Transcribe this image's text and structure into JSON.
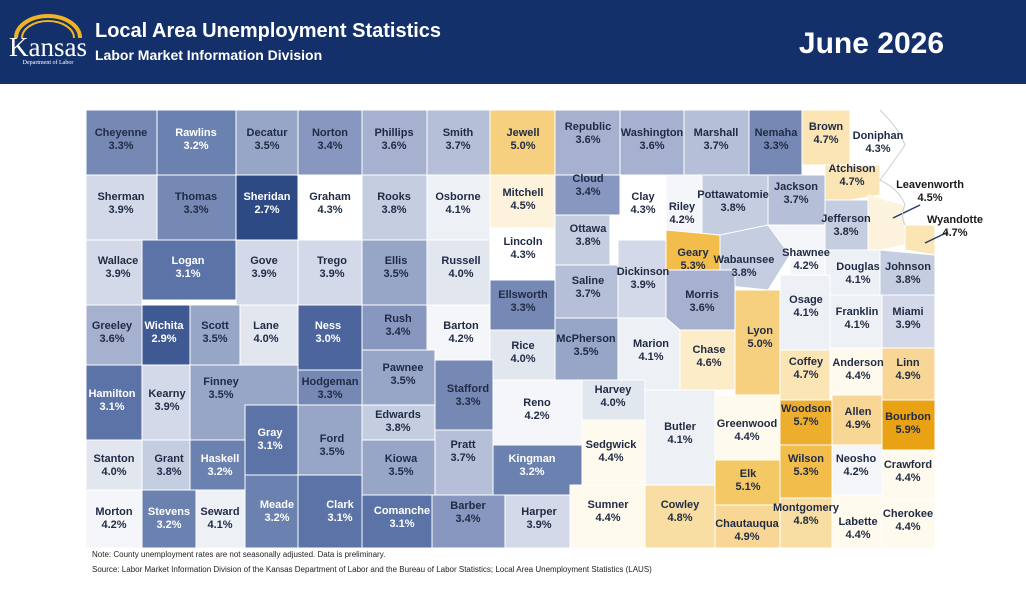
{
  "header": {
    "logo_text": "Kansas",
    "logo_subtext": "Department of Labor",
    "title": "Local Area Unemployment Statistics",
    "subtitle": "Labor Market Information Division",
    "period": "June 2026"
  },
  "colors": {
    "header_bg": "#13306b",
    "scale": {
      "2.7": "#2e4a84",
      "2.9": "#3f5a93",
      "3.0": "#4c659d",
      "3.1": "#5b73a6",
      "3.2": "#6b81b0",
      "3.3": "#7689b4",
      "3.4": "#8797bf",
      "3.5": "#97a5c7",
      "3.6": "#a5b1cf",
      "3.7": "#b5bfd8",
      "3.8": "#c5cde1",
      "3.9": "#d3d9e8",
      "4.0": "#e2e6ef",
      "4.1": "#edf0f5",
      "4.2": "#f5f6f9",
      "4.3": "#ffffff",
      "4.4": "#fffaee",
      "4.5": "#fdf3dc",
      "4.6": "#fcecc8",
      "4.7": "#fbe5b5",
      "4.8": "#f9dea4",
      "4.9": "#f8d796",
      "5.0": "#f6d07f",
      "5.1": "#f5c866",
      "5.3": "#f2bd4a",
      "5.7": "#eeae2d",
      "5.9": "#e9a213"
    }
  },
  "counties": [
    {
      "name": "Cheyenne",
      "rate": "3.3%"
    },
    {
      "name": "Rawlins",
      "rate": "3.2%"
    },
    {
      "name": "Decatur",
      "rate": "3.5%"
    },
    {
      "name": "Norton",
      "rate": "3.4%"
    },
    {
      "name": "Phillips",
      "rate": "3.6%"
    },
    {
      "name": "Smith",
      "rate": "3.7%"
    },
    {
      "name": "Jewell",
      "rate": "5.0%"
    },
    {
      "name": "Republic",
      "rate": "3.6%"
    },
    {
      "name": "Washington",
      "rate": "3.6%"
    },
    {
      "name": "Marshall",
      "rate": "3.7%"
    },
    {
      "name": "Nemaha",
      "rate": "3.3%"
    },
    {
      "name": "Brown",
      "rate": "4.7%"
    },
    {
      "name": "Doniphan",
      "rate": "4.3%"
    },
    {
      "name": "Sherman",
      "rate": "3.9%"
    },
    {
      "name": "Thomas",
      "rate": "3.3%"
    },
    {
      "name": "Sheridan",
      "rate": "2.7%"
    },
    {
      "name": "Graham",
      "rate": "4.3%"
    },
    {
      "name": "Rooks",
      "rate": "3.8%"
    },
    {
      "name": "Osborne",
      "rate": "4.1%"
    },
    {
      "name": "Mitchell",
      "rate": "4.5%"
    },
    {
      "name": "Cloud",
      "rate": "3.4%"
    },
    {
      "name": "Clay",
      "rate": "4.3%"
    },
    {
      "name": "Riley",
      "rate": "4.2%"
    },
    {
      "name": "Pottawatomie",
      "rate": "3.8%"
    },
    {
      "name": "Jackson",
      "rate": "3.7%"
    },
    {
      "name": "Atchison",
      "rate": "4.7%"
    },
    {
      "name": "Jefferson",
      "rate": "3.8%"
    },
    {
      "name": "Leavenworth",
      "rate": "4.5%"
    },
    {
      "name": "Wyandotte",
      "rate": "4.7%"
    },
    {
      "name": "Wallace",
      "rate": "3.9%"
    },
    {
      "name": "Logan",
      "rate": "3.1%"
    },
    {
      "name": "Gove",
      "rate": "3.9%"
    },
    {
      "name": "Trego",
      "rate": "3.9%"
    },
    {
      "name": "Ellis",
      "rate": "3.5%"
    },
    {
      "name": "Russell",
      "rate": "4.0%"
    },
    {
      "name": "Lincoln",
      "rate": "4.3%"
    },
    {
      "name": "Ottawa",
      "rate": "3.8%"
    },
    {
      "name": "Geary",
      "rate": "5.3%"
    },
    {
      "name": "Wabaunsee",
      "rate": "3.8%"
    },
    {
      "name": "Shawnee",
      "rate": "4.2%"
    },
    {
      "name": "Douglas",
      "rate": "4.1%"
    },
    {
      "name": "Johnson",
      "rate": "3.8%"
    },
    {
      "name": "Saline",
      "rate": "3.7%"
    },
    {
      "name": "Dickinson",
      "rate": "3.9%"
    },
    {
      "name": "Ellsworth",
      "rate": "3.3%"
    },
    {
      "name": "Greeley",
      "rate": "3.6%"
    },
    {
      "name": "Wichita",
      "rate": "2.9%"
    },
    {
      "name": "Scott",
      "rate": "3.5%"
    },
    {
      "name": "Lane",
      "rate": "4.0%"
    },
    {
      "name": "Ness",
      "rate": "3.0%"
    },
    {
      "name": "Rush",
      "rate": "3.4%"
    },
    {
      "name": "Barton",
      "rate": "4.2%"
    },
    {
      "name": "Rice",
      "rate": "4.0%"
    },
    {
      "name": "McPherson",
      "rate": "3.5%"
    },
    {
      "name": "Marion",
      "rate": "4.1%"
    },
    {
      "name": "Morris",
      "rate": "3.6%"
    },
    {
      "name": "Chase",
      "rate": "4.6%"
    },
    {
      "name": "Lyon",
      "rate": "5.0%"
    },
    {
      "name": "Osage",
      "rate": "4.1%"
    },
    {
      "name": "Franklin",
      "rate": "4.1%"
    },
    {
      "name": "Miami",
      "rate": "3.9%"
    },
    {
      "name": "Hamilton",
      "rate": "3.1%"
    },
    {
      "name": "Kearny",
      "rate": "3.9%"
    },
    {
      "name": "Finney",
      "rate": "3.5%"
    },
    {
      "name": "Hodgeman",
      "rate": "3.3%"
    },
    {
      "name": "Pawnee",
      "rate": "3.5%"
    },
    {
      "name": "Stafford",
      "rate": "3.3%"
    },
    {
      "name": "Reno",
      "rate": "4.2%"
    },
    {
      "name": "Harvey",
      "rate": "4.0%"
    },
    {
      "name": "Butler",
      "rate": "4.1%"
    },
    {
      "name": "Greenwood",
      "rate": "4.4%"
    },
    {
      "name": "Coffey",
      "rate": "4.7%"
    },
    {
      "name": "Anderson",
      "rate": "4.4%"
    },
    {
      "name": "Linn",
      "rate": "4.9%"
    },
    {
      "name": "Edwards",
      "rate": "3.8%"
    },
    {
      "name": "Gray",
      "rate": "3.1%"
    },
    {
      "name": "Ford",
      "rate": "3.5%"
    },
    {
      "name": "Woodson",
      "rate": "5.7%"
    },
    {
      "name": "Allen",
      "rate": "4.9%"
    },
    {
      "name": "Bourbon",
      "rate": "5.9%"
    },
    {
      "name": "Stanton",
      "rate": "4.0%"
    },
    {
      "name": "Grant",
      "rate": "3.8%"
    },
    {
      "name": "Haskell",
      "rate": "3.2%"
    },
    {
      "name": "Kiowa",
      "rate": "3.5%"
    },
    {
      "name": "Pratt",
      "rate": "3.7%"
    },
    {
      "name": "Kingman",
      "rate": "3.2%"
    },
    {
      "name": "Sedgwick",
      "rate": "4.4%"
    },
    {
      "name": "Elk",
      "rate": "5.1%"
    },
    {
      "name": "Wilson",
      "rate": "5.3%"
    },
    {
      "name": "Neosho",
      "rate": "4.2%"
    },
    {
      "name": "Crawford",
      "rate": "4.4%"
    },
    {
      "name": "Morton",
      "rate": "4.2%"
    },
    {
      "name": "Stevens",
      "rate": "3.2%"
    },
    {
      "name": "Seward",
      "rate": "4.1%"
    },
    {
      "name": "Meade",
      "rate": "3.2%"
    },
    {
      "name": "Clark",
      "rate": "3.1%"
    },
    {
      "name": "Comanche",
      "rate": "3.1%"
    },
    {
      "name": "Barber",
      "rate": "3.4%"
    },
    {
      "name": "Harper",
      "rate": "3.9%"
    },
    {
      "name": "Sumner",
      "rate": "4.4%"
    },
    {
      "name": "Cowley",
      "rate": "4.8%"
    },
    {
      "name": "Chautauqua",
      "rate": "4.9%"
    },
    {
      "name": "Montgomery",
      "rate": "4.8%"
    },
    {
      "name": "Labette",
      "rate": "4.4%"
    },
    {
      "name": "Cherokee",
      "rate": "4.4%"
    }
  ],
  "footer": {
    "note": "Note: County unemployment rates are not seasonally adjusted. Data is preliminary.",
    "source": "Source: Labor Market Information Division of the Kansas Department of Labor and the Bureau of Labor Statistics; Local Area Unemployment Statistics (LAUS)"
  }
}
